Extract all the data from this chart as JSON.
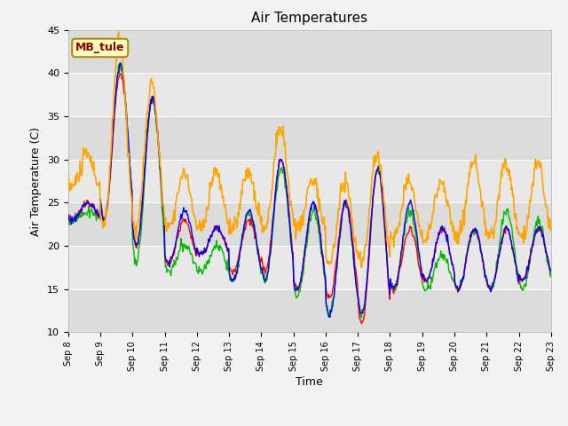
{
  "title": "Air Temperatures",
  "xlabel": "Time",
  "ylabel": "Air Temperature (C)",
  "ylim": [
    10,
    45
  ],
  "annotation_text": "MB_tule",
  "annotation_color": "#8B0000",
  "annotation_bg": "#FFFFC0",
  "annotation_border": "#B8860B",
  "series_colors": {
    "AirT": "#FF0000",
    "li75_t": "#0000FF",
    "li77_temp": "#00BB00",
    "Tsonic": "#FFA500"
  },
  "plot_bg": "#E8E8E8",
  "grid_color": "#FFFFFF",
  "yticks": [
    10,
    15,
    20,
    25,
    30,
    35,
    40,
    45
  ],
  "tick_labels": [
    "Sep 8",
    "Sep 9",
    "Sep 10",
    "Sep 11",
    "Sep 12",
    "Sep 13",
    "Sep 14",
    "Sep 15",
    "Sep 16",
    "Sep 17",
    "Sep 18",
    "Sep 19",
    "Sep 20",
    "Sep 21",
    "Sep 22",
    "Sep 23"
  ],
  "n_days": 15,
  "pts_per_day": 48,
  "day_peaks_AirT": [
    25,
    40,
    37,
    23,
    22,
    23,
    30,
    25,
    25,
    29,
    22,
    22,
    22,
    22,
    22,
    25
  ],
  "day_mins_AirT": [
    23,
    23,
    20,
    18,
    19,
    17,
    17,
    15,
    14,
    11,
    15,
    16,
    15,
    15,
    16,
    16
  ],
  "day_peaks_li75_t": [
    25,
    41,
    37,
    24,
    22,
    24,
    30,
    25,
    25,
    29,
    25,
    22,
    22,
    22,
    22,
    25
  ],
  "day_mins_li75_t": [
    23,
    23,
    20,
    18,
    19,
    16,
    16,
    15,
    12,
    12,
    15,
    16,
    15,
    15,
    16,
    16
  ],
  "day_peaks_li77": [
    24,
    41,
    37,
    20,
    20,
    24,
    29,
    24,
    25,
    29,
    24,
    19,
    22,
    24,
    23,
    24
  ],
  "day_mins_li77": [
    23,
    23,
    18,
    17,
    17,
    16,
    16,
    14,
    12,
    12,
    15,
    15,
    15,
    15,
    15,
    16
  ],
  "day_peaks_Tsonic": [
    29,
    42,
    37,
    27,
    27,
    27,
    32,
    26,
    26,
    29,
    26,
    26,
    28,
    28,
    28,
    28
  ],
  "day_mins_Tsonic": [
    27,
    22,
    22,
    22,
    22,
    22,
    22,
    22,
    18,
    18,
    21,
    21,
    21,
    21,
    21,
    23
  ]
}
